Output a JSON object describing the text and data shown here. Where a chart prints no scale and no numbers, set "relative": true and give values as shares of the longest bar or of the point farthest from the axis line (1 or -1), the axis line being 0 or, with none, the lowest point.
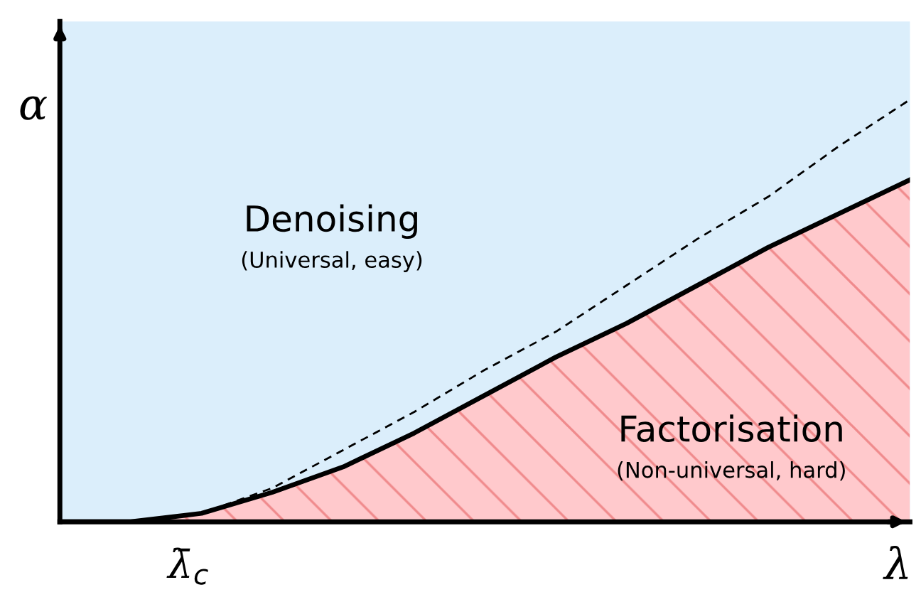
{
  "chart_data": {
    "type": "line",
    "relative": true,
    "xlabel": "λ",
    "ylabel": "α",
    "categories": [
      null,
      null,
      null,
      null,
      null,
      null,
      null,
      null,
      null,
      null,
      null,
      null,
      null
    ],
    "series": [
      {
        "type": "area",
        "color": "#ffc9cc",
        "values": [
          0,
          0,
          0.02,
          0.07,
          0.13,
          0.21,
          0.3,
          0.39,
          0.47,
          0.56,
          0.65,
          0.73,
          0.81
        ]
      },
      {
        "color": "#000000",
        "line_style": "dashed",
        "values": [
          0,
          0,
          0.02,
          0.08,
          0.17,
          0.26,
          0.36,
          0.45,
          0.56,
          0.67,
          0.77,
          0.89,
          1.0
        ]
      }
    ],
    "annotations": [
      "Denoising",
      "(Universal, easy)",
      "Factorisation",
      "(Non-universal, hard)",
      "λ̄$_{c}$"
    ],
    "legend": false,
    "marker": "none"
  }
}
